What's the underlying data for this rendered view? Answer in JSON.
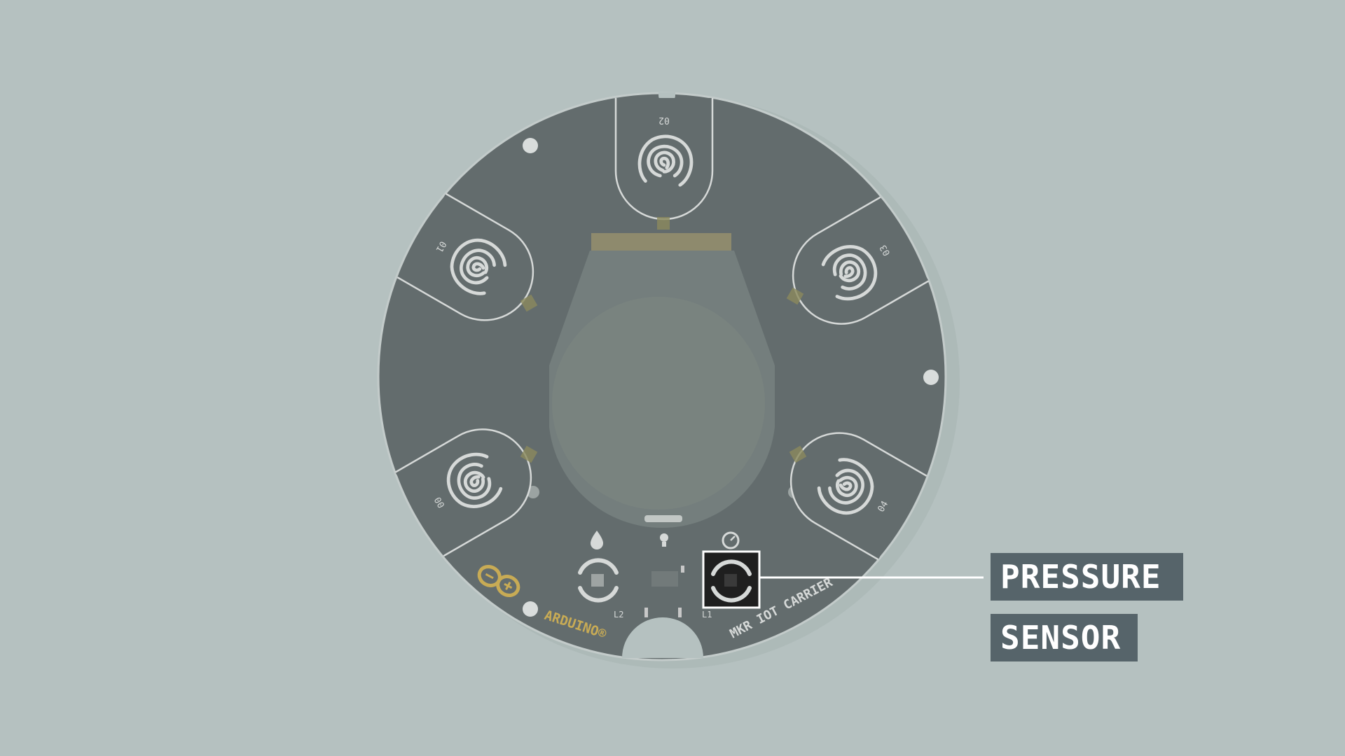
{
  "callout": {
    "line1": "PRESSURE",
    "line2": "SENSOR"
  },
  "board": {
    "brand": "ARDUINO®",
    "name": "MKR IOT CARRIER",
    "pads": [
      "00",
      "01",
      "02",
      "03",
      "04"
    ],
    "leds": [
      "L2",
      "L1"
    ]
  },
  "colors": {
    "background": "#b5c1c0",
    "board": "#636c6d",
    "board_edge": "#bfc7c6",
    "label_bg": "#56646a",
    "brand": "#c8ab55",
    "highlight_box": "#1f1f1f"
  },
  "icons": [
    "fingerprint-icon",
    "water-drop-icon",
    "light-bulb-icon",
    "gauge-icon",
    "arduino-logo-icon"
  ]
}
